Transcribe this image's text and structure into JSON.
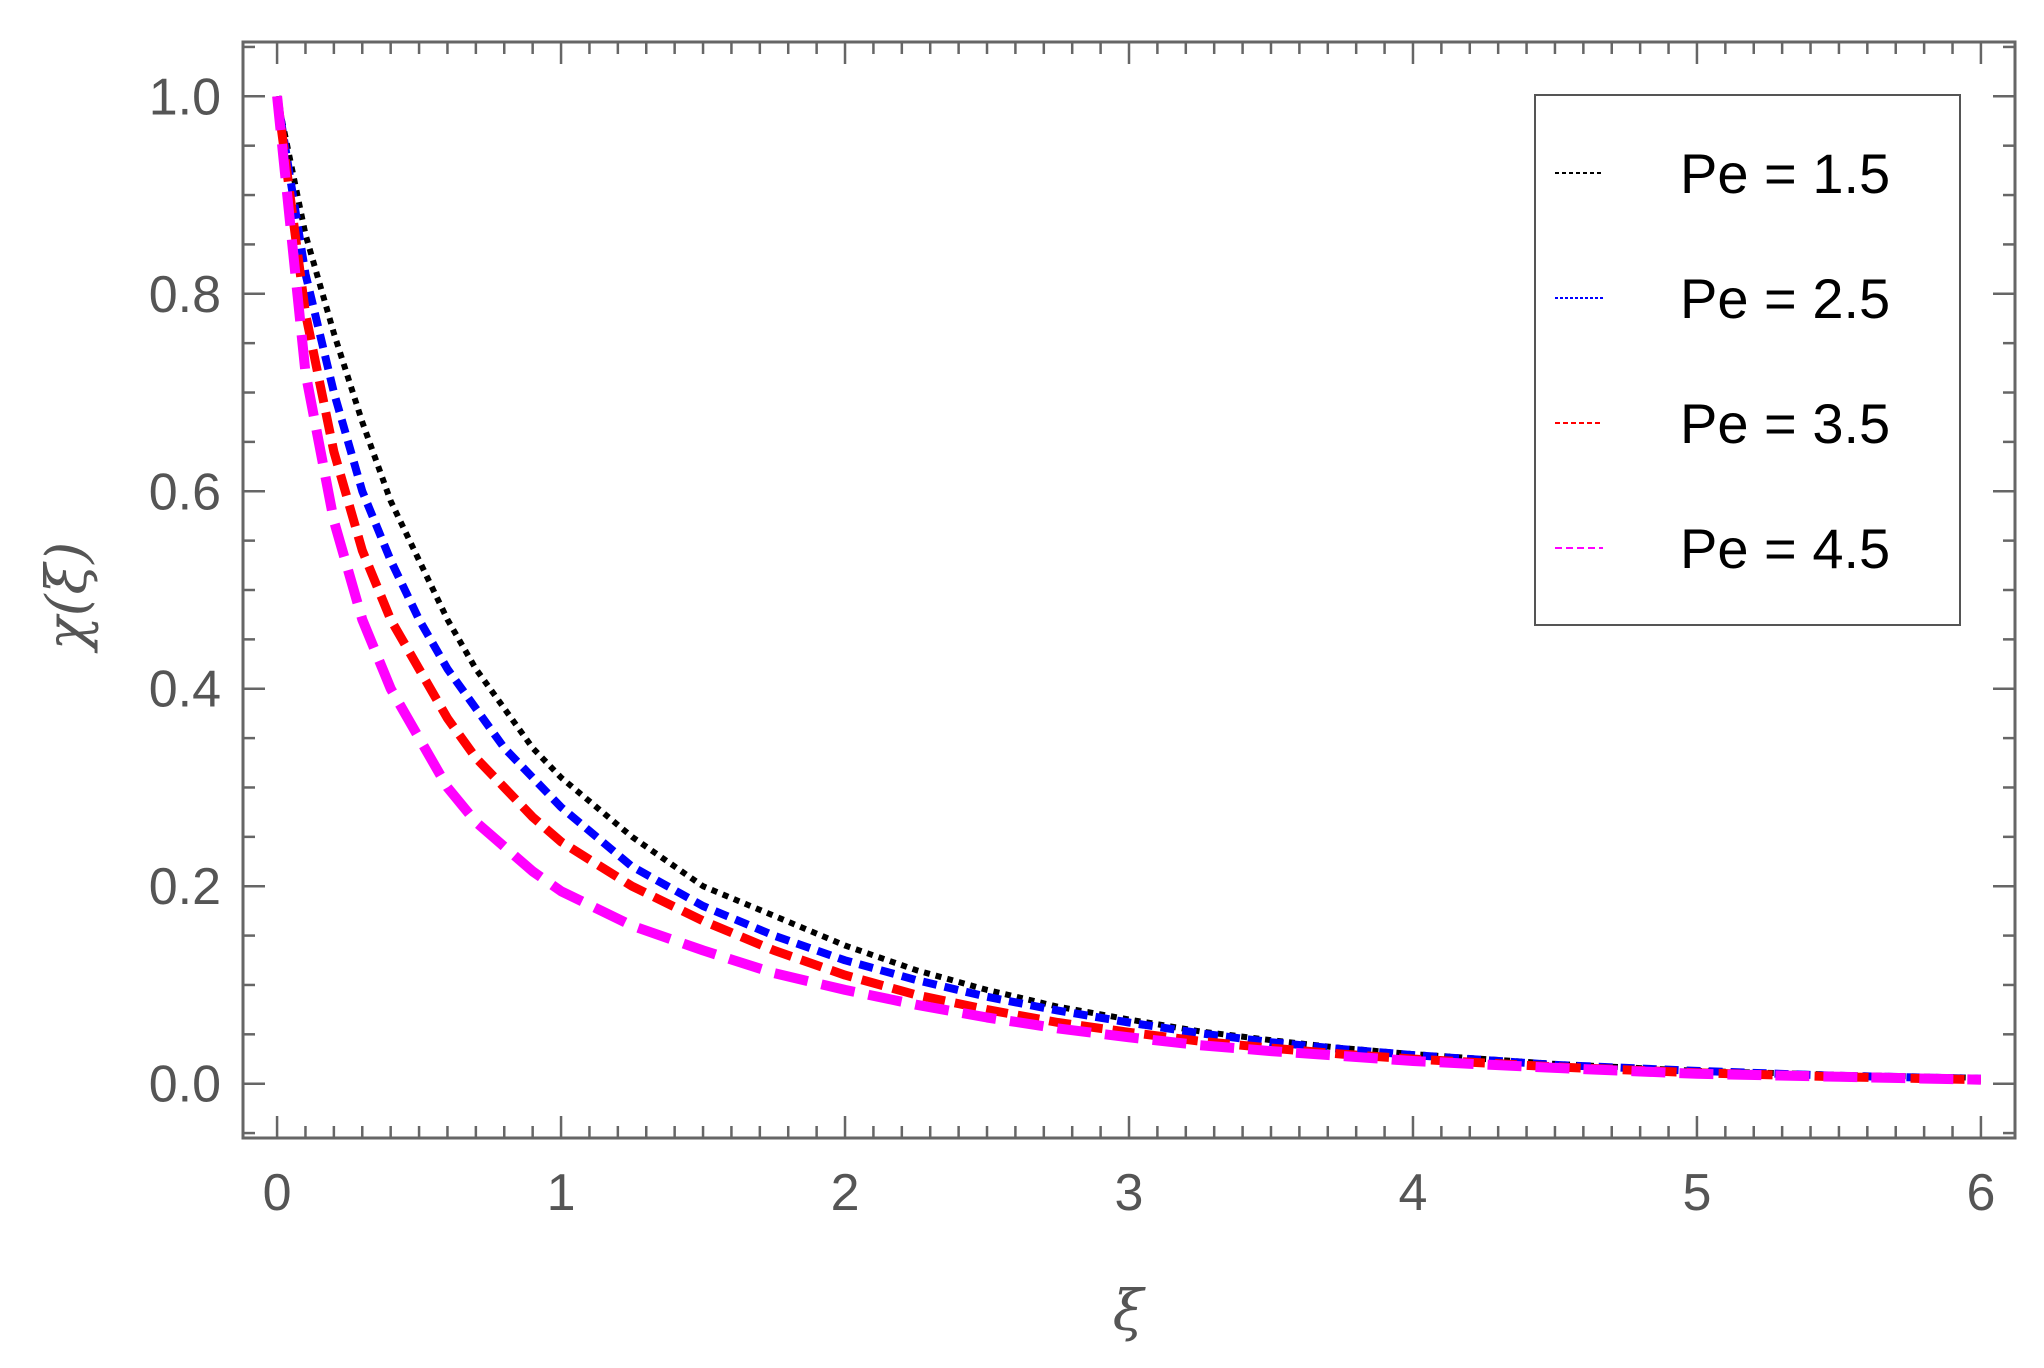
{
  "chart_data": {
    "type": "line",
    "xlabel": "ξ",
    "ylabel": "χ(ξ)",
    "xlim": [
      -0.12,
      6.12
    ],
    "ylim": [
      -0.055,
      1.055
    ],
    "xticks": [
      "0",
      "1",
      "2",
      "3",
      "4",
      "5",
      "6"
    ],
    "yticks": [
      "0.0",
      "0.2",
      "0.4",
      "0.6",
      "0.8",
      "1.0"
    ],
    "grid": false,
    "legend_position": "top-right",
    "colors": {
      "frame": "#666666",
      "tick_text": "#555555"
    },
    "x": [
      0,
      0.1,
      0.2,
      0.3,
      0.4,
      0.5,
      0.6,
      0.7,
      0.8,
      0.9,
      1.0,
      1.25,
      1.5,
      1.75,
      2.0,
      2.25,
      2.5,
      2.75,
      3.0,
      3.25,
      3.5,
      3.75,
      4.0,
      4.5,
      5.0,
      5.5,
      6.0
    ],
    "series": [
      {
        "name": "Pe = 1.5",
        "color": "#000000",
        "values": [
          1.0,
          0.86,
          0.76,
          0.67,
          0.59,
          0.53,
          0.47,
          0.42,
          0.38,
          0.34,
          0.31,
          0.25,
          0.2,
          0.17,
          0.14,
          0.115,
          0.095,
          0.078,
          0.065,
          0.053,
          0.044,
          0.036,
          0.03,
          0.02,
          0.013,
          0.009,
          0.006
        ]
      },
      {
        "name": "Pe = 2.5",
        "color": "#0000ff",
        "values": [
          1.0,
          0.82,
          0.7,
          0.6,
          0.53,
          0.47,
          0.42,
          0.38,
          0.34,
          0.31,
          0.28,
          0.22,
          0.18,
          0.15,
          0.125,
          0.105,
          0.088,
          0.074,
          0.062,
          0.051,
          0.042,
          0.035,
          0.029,
          0.019,
          0.013,
          0.008,
          0.005
        ]
      },
      {
        "name": "Pe = 3.5",
        "color": "#ff0000",
        "values": [
          1.0,
          0.78,
          0.64,
          0.54,
          0.47,
          0.42,
          0.37,
          0.33,
          0.3,
          0.27,
          0.245,
          0.2,
          0.165,
          0.135,
          0.11,
          0.09,
          0.075,
          0.062,
          0.052,
          0.043,
          0.036,
          0.03,
          0.025,
          0.017,
          0.011,
          0.007,
          0.004
        ]
      },
      {
        "name": "Pe = 4.5",
        "color": "#ff00ff",
        "values": [
          1.0,
          0.72,
          0.57,
          0.47,
          0.4,
          0.35,
          0.3,
          0.265,
          0.24,
          0.215,
          0.195,
          0.16,
          0.135,
          0.112,
          0.095,
          0.08,
          0.067,
          0.056,
          0.047,
          0.039,
          0.033,
          0.028,
          0.023,
          0.016,
          0.01,
          0.007,
          0.004
        ]
      }
    ]
  }
}
